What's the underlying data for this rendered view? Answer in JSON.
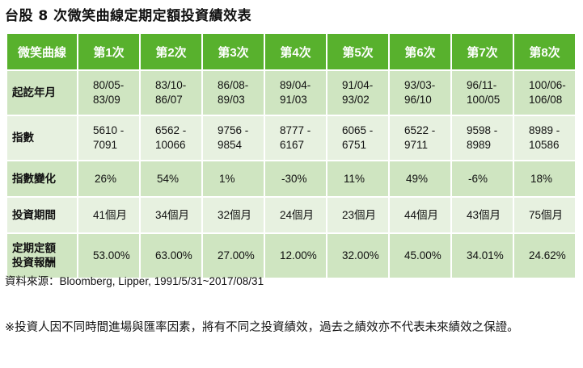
{
  "title": "台股 8 次微笑曲線定期定額投資績效表",
  "table": {
    "corner": "微笑曲線",
    "columns": [
      "第1次",
      "第2次",
      "第3次",
      "第4次",
      "第5次",
      "第6次",
      "第7次",
      "第8次"
    ],
    "rows": [
      {
        "label": "起訖年月",
        "cells": [
          "80/05-\n83/09",
          "83/10-\n86/07",
          "86/08-\n89/03",
          "89/04-\n91/03",
          "91/04-\n93/02",
          "93/03-\n96/10",
          "96/11-\n100/05",
          "100/06-\n106/08"
        ]
      },
      {
        "label": "指數",
        "cells": [
          "5610 -\n7091",
          "6562 -\n10066",
          "9756 -\n9854",
          "8777 -\n6167",
          "6065 -\n6751",
          "6522 -\n9711",
          "9598 -\n8989",
          "8989 -\n10586"
        ]
      },
      {
        "label": "指數變化",
        "cells": [
          "26%",
          "54%",
          "1%",
          "-30%",
          "11%",
          "49%",
          "-6%",
          "18%"
        ]
      },
      {
        "label": "投資期間",
        "cells": [
          "41個月",
          "34個月",
          "32個月",
          "24個月",
          "23個月",
          "44個月",
          "43個月",
          "75個月"
        ]
      },
      {
        "label": "定期定額\n投資報酬",
        "cells": [
          "53.00%",
          "63.00%",
          "27.00%",
          "12.00%",
          "32.00%",
          "45.00%",
          "34.01%",
          "24.62%"
        ]
      }
    ]
  },
  "source": "資料來源：Bloomberg, Lipper, 1991/5/31~2017/08/31",
  "note": "※投資人因不同時間進場與匯率因素，將有不同之投資績效，過去之績效亦不代表未來績效之保證。",
  "colors": {
    "header": "#58b12d",
    "row_dark": "#cfe5c1",
    "row_light": "#e7f1e0"
  }
}
